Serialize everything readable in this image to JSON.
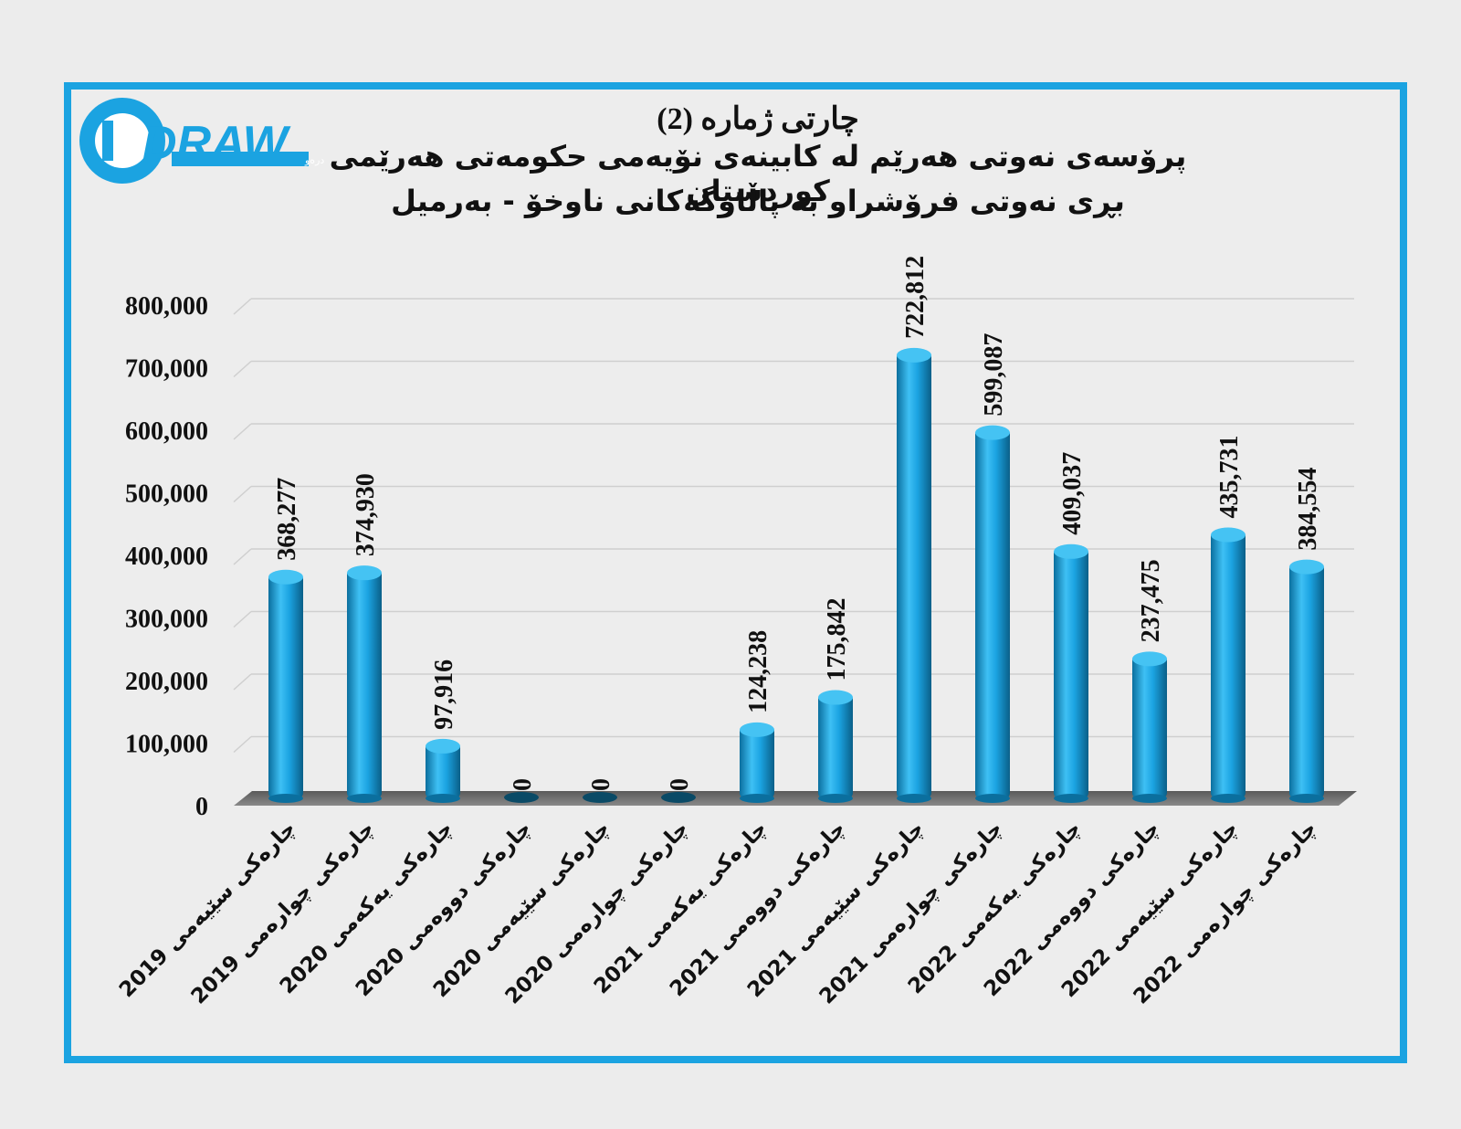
{
  "logo": {
    "text": "DRAW",
    "tagline": "دامەزراوەی میدیایی درەو",
    "accent": "#1ba3e1"
  },
  "title": "چارتی ژمارە (2)",
  "subtitle1": "پرۆسەی نەوتی هەرێم لە کابینەی نۆیەمی حکومەتی هەرێمی کوردستان",
  "subtitle2": "بڕی نەوتی فرۆشراو بە پاڵاوگەکانی ناوخۆ - بەرمیل",
  "colors": {
    "bar": "#1ba3e1",
    "frame": "#1ba3e1",
    "background": "#ededed"
  },
  "chart_data": {
    "type": "bar",
    "categories": [
      "چارەکی سێیەمی 2019",
      "چارەکی چوارەمی 2019",
      "چارەکی یەکەمی 2020",
      "چارەکی دووەمی 2020",
      "چارەکی سێیەمی 2020",
      "چارەکی چوارەمی 2020",
      "چارەکی یەکەمی 2021",
      "چارەکی دووەمی 2021",
      "چارەکی سێیەمی 2021",
      "چارەکی چوارەمی 2021",
      "چارەکی یەکەمی 2022",
      "چارەکی دووەمی 2022",
      "چارەکی سێیەمی 2022",
      "چارەکی چوارەمی 2022"
    ],
    "values": [
      368277,
      374930,
      97916,
      0,
      0,
      0,
      124238,
      175842,
      722812,
      599087,
      409037,
      237475,
      435731,
      384554
    ],
    "value_labels": [
      "368,277",
      "374,930",
      "97,916",
      "0",
      "0",
      "0",
      "124,238",
      "175,842",
      "722,812",
      "599,087",
      "409,037",
      "237,475",
      "435,731",
      "384,554"
    ],
    "y_ticks": [
      "0",
      "100,000",
      "200,000",
      "300,000",
      "400,000",
      "500,000",
      "600,000",
      "700,000",
      "800,000"
    ],
    "ylim": [
      0,
      800000
    ],
    "grid": true,
    "legend": "none"
  }
}
